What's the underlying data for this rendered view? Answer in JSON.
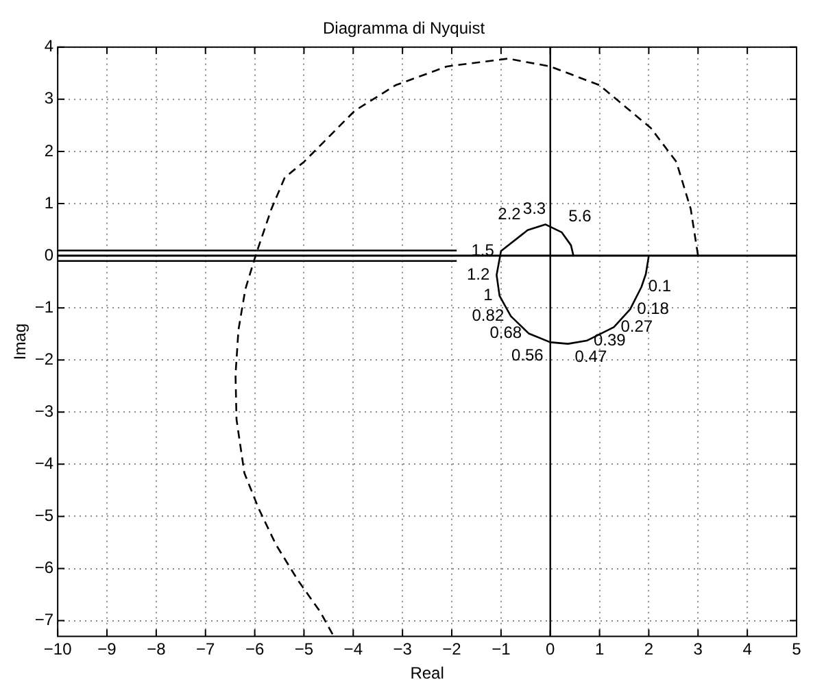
{
  "chart_data": {
    "type": "line",
    "title": "Diagramma di Nyquist",
    "xlabel": "Real",
    "ylabel": "Imag",
    "xlim": [
      -10,
      5
    ],
    "ylim": [
      -7.3,
      4
    ],
    "xticks": [
      -10,
      -9,
      -8,
      -7,
      -6,
      -5,
      -4,
      -3,
      -2,
      -1,
      0,
      1,
      2,
      3,
      4,
      5
    ],
    "yticks": [
      -7,
      -6,
      -5,
      -4,
      -3,
      -2,
      -1,
      0,
      1,
      2,
      3,
      4
    ],
    "grid": true,
    "legend": false,
    "series": [
      {
        "color": "#000000",
        "line_style": "solid",
        "x": [
          2,
          1.94,
          1.85,
          1.62,
          1.29,
          0.74,
          0.36,
          0,
          -0.44,
          -0.8,
          -1.03,
          -1.09,
          -1,
          -0.46,
          -0.1,
          0.23,
          0.42,
          0.47
        ],
        "values": [
          0,
          -0.35,
          -0.6,
          -1.03,
          -1.37,
          -1.63,
          -1.69,
          -1.66,
          -1.49,
          -1.16,
          -0.77,
          -0.37,
          0.09,
          0.49,
          0.6,
          0.45,
          0.2,
          0
        ]
      },
      {
        "color": "#000000",
        "line_style": "dashed",
        "x": [
          -4.42,
          -4.67,
          -5.12,
          -5.57,
          -5.92,
          -6.21,
          -6.37,
          -6.39,
          -6.33,
          -6.19,
          -5.97,
          -5.66,
          -5.39,
          -5,
          -3.97,
          -3.14,
          -2.1,
          -0.86,
          0,
          1,
          2.04,
          2.56,
          2.85,
          3
        ],
        "values": [
          -7.26,
          -6.83,
          -6.23,
          -5.54,
          -4.85,
          -4.17,
          -3.14,
          -2.28,
          -1.42,
          -0.64,
          0.04,
          0.9,
          1.5,
          1.8,
          2.78,
          3.27,
          3.63,
          3.78,
          3.63,
          3.27,
          2.45,
          1.8,
          0.9,
          0
        ]
      },
      {
        "color": "#000000",
        "line_style": "solid",
        "x": [
          -10,
          -1.9
        ],
        "values": [
          0.1,
          0.1
        ]
      },
      {
        "color": "#000000",
        "line_style": "solid",
        "x": [
          -10,
          -1.9
        ],
        "values": [
          -0.1,
          -0.1
        ]
      }
    ],
    "ref_lines": [
      {
        "axis": "x",
        "value": 0,
        "color": "#000000",
        "line_style": "solid"
      },
      {
        "axis": "y",
        "value": 0,
        "color": "#000000",
        "line_style": "solid"
      }
    ],
    "annotations": [
      {
        "text": "0.1",
        "x": 1.85,
        "y": -0.6
      },
      {
        "text": "0.18",
        "x": 1.62,
        "y": -1.03
      },
      {
        "text": "0.27",
        "x": 1.29,
        "y": -1.37
      },
      {
        "text": "0.39",
        "x": 0.74,
        "y": -1.63
      },
      {
        "text": "0.47",
        "x": 0.36,
        "y": -1.69
      },
      {
        "text": "0.56",
        "x": 0,
        "y": -1.66
      },
      {
        "text": "0.68",
        "x": -0.44,
        "y": -1.49
      },
      {
        "text": "0.82",
        "x": -0.8,
        "y": -1.16
      },
      {
        "text": "1",
        "x": -1.03,
        "y": -0.77
      },
      {
        "text": "1.2",
        "x": -1.09,
        "y": -0.37
      },
      {
        "text": "1.5",
        "x": -1,
        "y": 0.09
      },
      {
        "text": "2.2",
        "x": -0.46,
        "y": 0.49
      },
      {
        "text": "3.3",
        "x": -0.1,
        "y": 0.6
      },
      {
        "text": "5.6",
        "x": 0.23,
        "y": 0.45
      }
    ]
  }
}
